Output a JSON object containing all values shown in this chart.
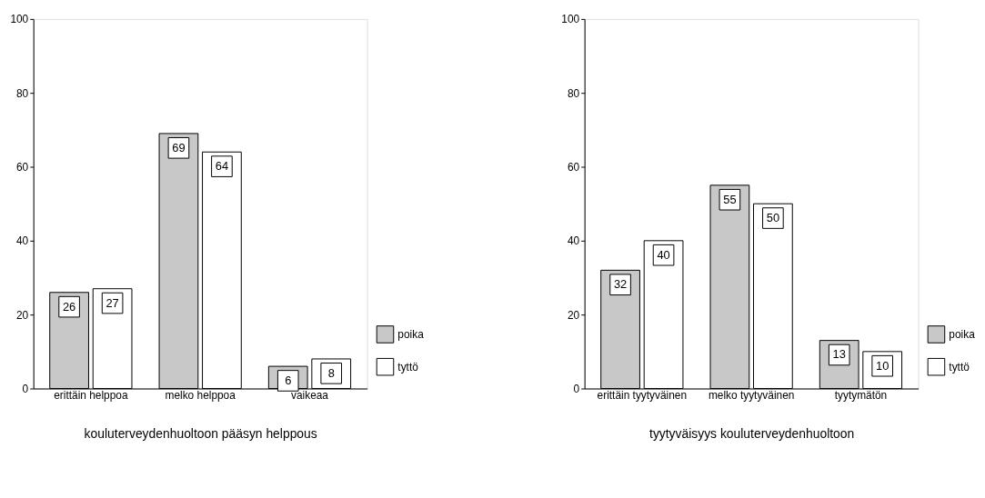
{
  "chart_data": [
    {
      "type": "bar",
      "xlabel": "kouluterveydenhuoltoon pääsyn helppous",
      "categories": [
        "erittäin helppoa",
        "melko helppoa",
        "vaikeaa"
      ],
      "series": [
        {
          "name": "poika",
          "color": "#c8c8c8",
          "values": [
            26,
            69,
            6
          ]
        },
        {
          "name": "tyttö",
          "color": "#ffffff",
          "values": [
            27,
            64,
            8
          ]
        }
      ],
      "ylim": [
        0,
        100
      ],
      "yticks": [
        0,
        20,
        40,
        60,
        80,
        100
      ],
      "grid": false,
      "legend": "bottom right",
      "data_labels": true
    },
    {
      "type": "bar",
      "xlabel": "tyytyväisyys kouluterveydenhuoltoon",
      "categories": [
        "erittäin tyytyväinen",
        "melko tyytyväinen",
        "tyytymätön"
      ],
      "series": [
        {
          "name": "poika",
          "color": "#c8c8c8",
          "values": [
            32,
            55,
            13
          ]
        },
        {
          "name": "tyttö",
          "color": "#ffffff",
          "values": [
            40,
            50,
            10
          ]
        }
      ],
      "ylim": [
        0,
        100
      ],
      "yticks": [
        0,
        20,
        40,
        60,
        80,
        100
      ],
      "grid": false,
      "legend": "bottom right",
      "data_labels": true
    }
  ]
}
